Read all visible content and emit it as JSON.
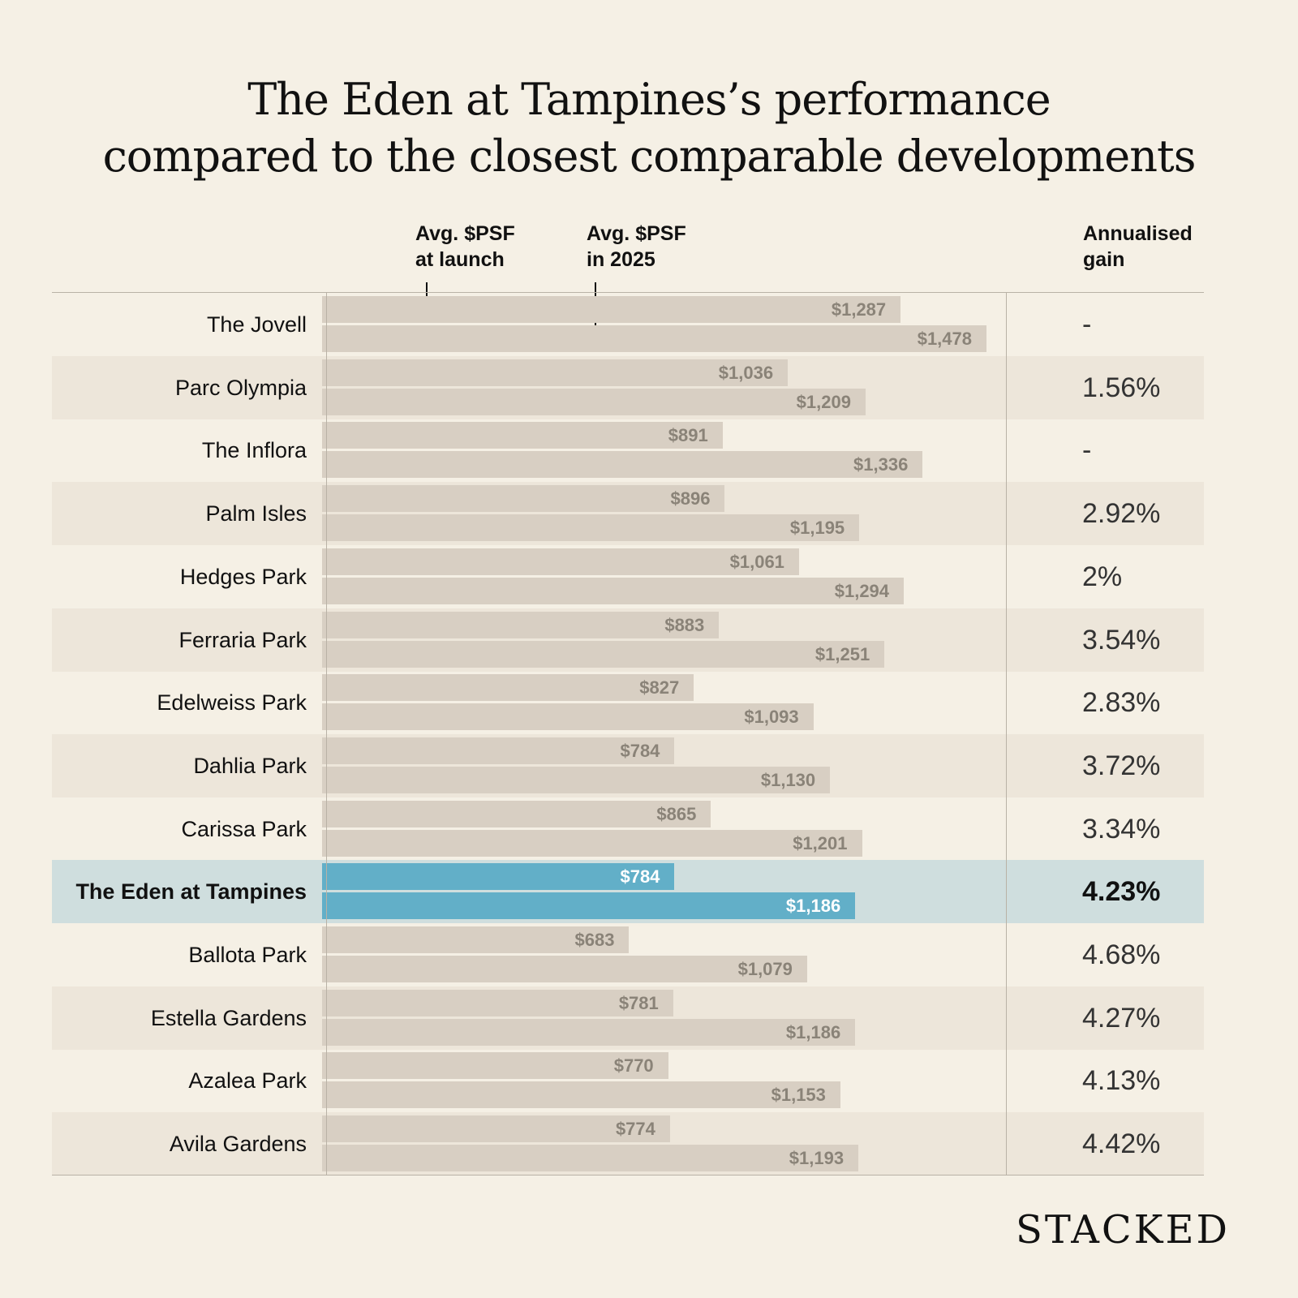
{
  "chart_data": {
    "type": "bar",
    "title": "The Eden at Tampines's performance compared to the closest comparable developments",
    "title_lines": [
      "The Eden at Tampines’s performance",
      "compared to the closest comparable developments"
    ],
    "series_labels": {
      "launch": "Avg. $PSF at launch",
      "current": "Avg. $PSF in 2025"
    },
    "series_label_lines": {
      "launch": [
        "Avg. $PSF",
        "at launch"
      ],
      "current": [
        "Avg. $PSF",
        "in 2025"
      ]
    },
    "gain_header_lines": [
      "Annualised",
      "gain"
    ],
    "highlight": "The Eden at Tampines",
    "colors": {
      "bar": "#d8cfc3",
      "highlight_bar": "#62afc8",
      "highlight_row": "#cfdede",
      "alt_row": "#ede6da",
      "background": "#f5f0e5"
    },
    "categories": [
      "The Jovell",
      "Parc Olympia",
      "The Inflora",
      "Palm Isles",
      "Hedges Park",
      "Ferraria Park",
      "Edelweiss Park",
      "Dahlia Park",
      "Carissa Park",
      "The Eden at Tampines",
      "Ballota Park",
      "Estella Gardens",
      "Azalea Park",
      "Avila Gardens"
    ],
    "series": [
      {
        "name": "Avg. $PSF at launch",
        "values": [
          1287,
          1036,
          891,
          896,
          1061,
          883,
          827,
          784,
          865,
          784,
          683,
          781,
          770,
          774
        ],
        "labels": [
          "$1,287",
          "$1,036",
          "$891",
          "$896",
          "$1,061",
          "$883",
          "$827",
          "$784",
          "$865",
          "$784",
          "$683",
          "$781",
          "$770",
          "$774"
        ]
      },
      {
        "name": "Avg. $PSF in 2025",
        "values": [
          1478,
          1209,
          1336,
          1195,
          1294,
          1251,
          1093,
          1130,
          1201,
          1186,
          1079,
          1186,
          1153,
          1193
        ],
        "labels": [
          "$1,478",
          "$1,209",
          "$1,336",
          "$1,195",
          "$1,294",
          "$1,251",
          "$1,093",
          "$1,130",
          "$1,201",
          "$1,186",
          "$1,079",
          "$1,186",
          "$1,153",
          "$1,193"
        ]
      }
    ],
    "annualised_gain": [
      "-",
      "1.56%",
      "-",
      "2.92%",
      "2%",
      "3.54%",
      "2.83%",
      "3.72%",
      "3.34%",
      "4.23%",
      "4.68%",
      "4.27%",
      "4.13%",
      "4.42%"
    ],
    "xlim": [
      0,
      1478
    ]
  },
  "brand": "STACKED"
}
